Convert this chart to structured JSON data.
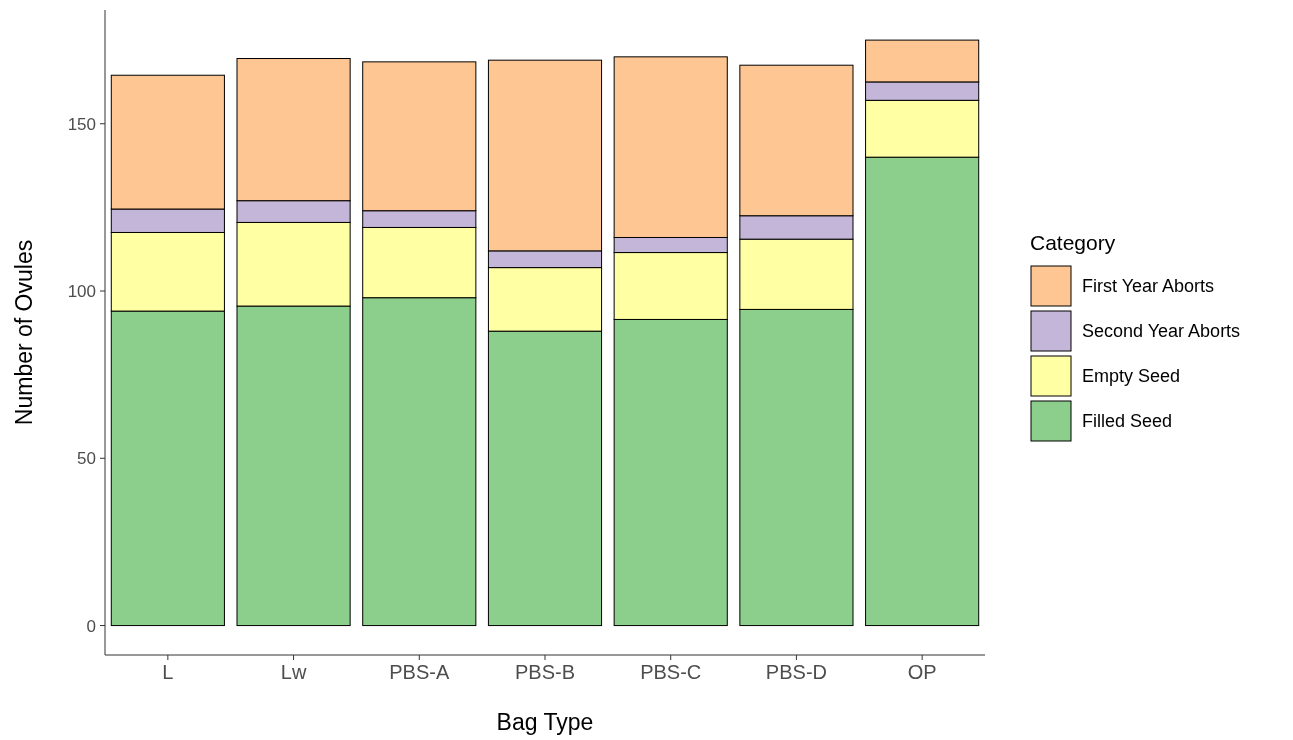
{
  "chart_data": {
    "type": "bar",
    "stacked": true,
    "xlabel": "Bag Type",
    "ylabel": "Number of Ovules",
    "legend_title": "Category",
    "legend": "right",
    "categories": [
      "L",
      "Lw",
      "PBS-A",
      "PBS-B",
      "PBS-C",
      "PBS-D",
      "OP"
    ],
    "series": [
      {
        "name": "Filled Seed",
        "color": "#7fc97f",
        "values": [
          94,
          95.5,
          98,
          88,
          91.5,
          94.5,
          140
        ]
      },
      {
        "name": "Empty Seed",
        "color": "#ffff99",
        "values": [
          23.5,
          25,
          21,
          19,
          20,
          21,
          17
        ]
      },
      {
        "name": "Second Year Aborts",
        "color": "#beaed4",
        "values": [
          7,
          6.5,
          5,
          5,
          4.5,
          7,
          5.5
        ]
      },
      {
        "name": "First Year Aborts",
        "color": "#fdc086",
        "values": [
          40,
          42.5,
          44.5,
          57,
          54,
          45,
          12.5
        ]
      }
    ],
    "ylim": [
      -8.8,
      184
    ],
    "yticks": [
      0,
      50,
      100,
      150
    ],
    "grid": false
  }
}
